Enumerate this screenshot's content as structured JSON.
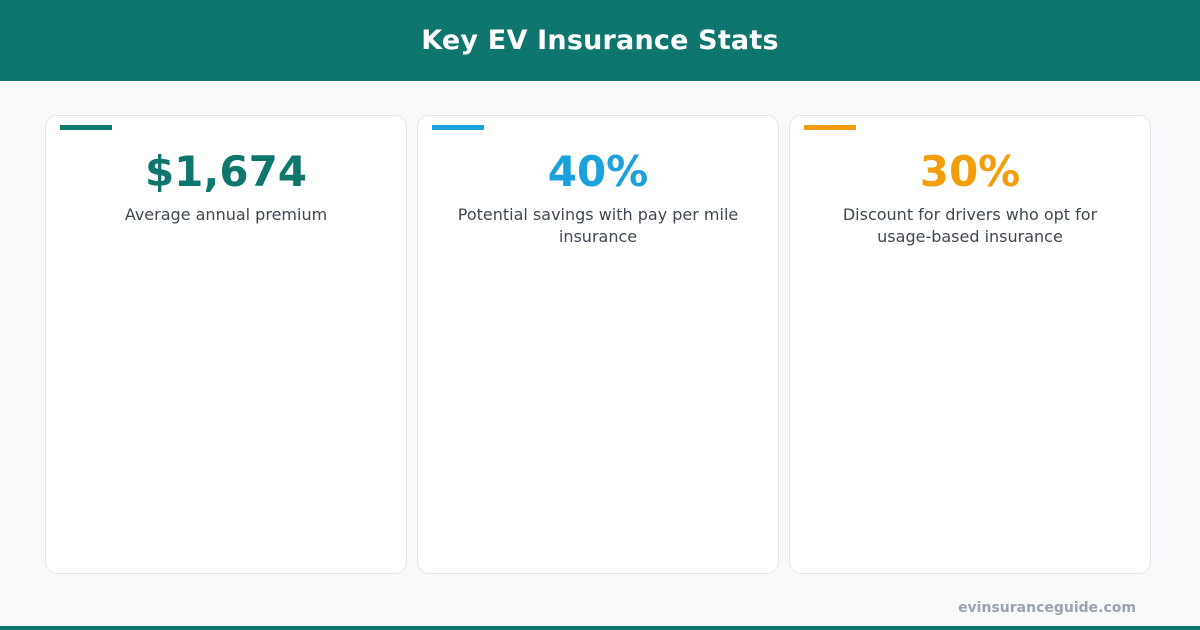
{
  "header": {
    "title": "Key EV Insurance Stats"
  },
  "colors": {
    "brand": "#0f766e",
    "card1_accent": "#0f766e",
    "card2_accent": "#1ba1db",
    "card3_accent": "#f29e0b"
  },
  "cards": [
    {
      "value": "$1,674",
      "label": "Average annual premium"
    },
    {
      "value": "40%",
      "label": "Potential savings with pay per mile insurance"
    },
    {
      "value": "30%",
      "label": "Discount for drivers who opt for usage-based insurance"
    }
  ],
  "footer": {
    "site": "evinsuranceguide.com"
  }
}
